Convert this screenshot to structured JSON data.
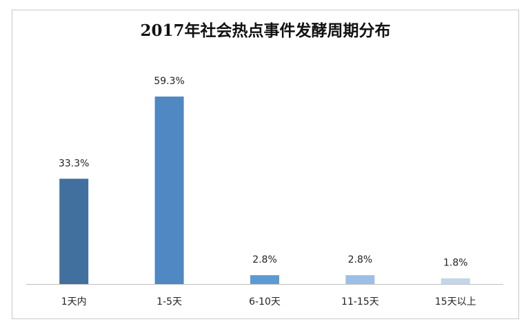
{
  "chart_data": {
    "type": "bar",
    "title": "2017年社会热点事件发酵周期分布",
    "categories": [
      "1天内",
      "1-5天",
      "6-10天",
      "11-15天",
      "15天以上"
    ],
    "values": [
      33.3,
      59.3,
      2.8,
      2.8,
      1.8
    ],
    "value_labels": [
      "33.3%",
      "59.3%",
      "2.8%",
      "2.8%",
      "1.8%"
    ],
    "colors": [
      "#41709f",
      "#4f88c2",
      "#5b9bd5",
      "#9dbfe6",
      "#c3d5ec"
    ],
    "ylim": [
      0,
      70
    ]
  }
}
